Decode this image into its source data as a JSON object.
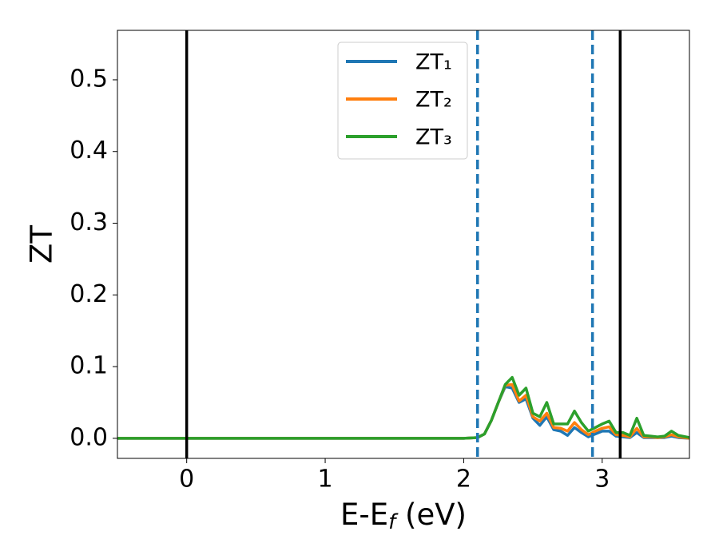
{
  "chart_data": {
    "type": "line",
    "x_label_parts": [
      "E-E",
      "f",
      " (eV)"
    ],
    "y_label": "ZT",
    "x": [
      -0.5,
      2.0,
      2.1,
      2.15,
      2.2,
      2.25,
      2.3,
      2.35,
      2.4,
      2.45,
      2.5,
      2.55,
      2.6,
      2.65,
      2.7,
      2.75,
      2.8,
      2.85,
      2.9,
      2.95,
      3.0,
      3.05,
      3.1,
      3.15,
      3.2,
      3.25,
      3.3,
      3.35,
      3.4,
      3.45,
      3.5,
      3.55,
      3.63
    ],
    "series": [
      {
        "name": "ZT₁",
        "color": "#1f77b4",
        "values": [
          0,
          0,
          0.001,
          0.006,
          0.025,
          0.05,
          0.072,
          0.07,
          0.05,
          0.055,
          0.028,
          0.018,
          0.03,
          0.012,
          0.01,
          0.004,
          0.015,
          0.008,
          0.002,
          0.006,
          0.01,
          0.01,
          0.003,
          0.002,
          0.001,
          0.008,
          0.001,
          0.001,
          0.001,
          0.001,
          0.003,
          0.001,
          0
        ]
      },
      {
        "name": "ZT₂",
        "color": "#ff7f0e",
        "values": [
          0,
          0,
          0.001,
          0.006,
          0.025,
          0.05,
          0.074,
          0.075,
          0.052,
          0.06,
          0.03,
          0.024,
          0.035,
          0.015,
          0.014,
          0.01,
          0.022,
          0.012,
          0.005,
          0.01,
          0.014,
          0.016,
          0.005,
          0.004,
          0.002,
          0.014,
          0.002,
          0.002,
          0.001,
          0.002,
          0.005,
          0.002,
          0
        ]
      },
      {
        "name": "ZT₃",
        "color": "#2ca02c",
        "values": [
          0,
          0,
          0.001,
          0.006,
          0.025,
          0.05,
          0.075,
          0.085,
          0.06,
          0.07,
          0.035,
          0.03,
          0.05,
          0.02,
          0.02,
          0.02,
          0.038,
          0.022,
          0.01,
          0.015,
          0.02,
          0.024,
          0.008,
          0.008,
          0.004,
          0.028,
          0.004,
          0.003,
          0.002,
          0.003,
          0.01,
          0.004,
          0.001
        ]
      }
    ],
    "vlines": [
      {
        "x": 0,
        "color": "#000000",
        "style": "solid"
      },
      {
        "x": 3.13,
        "color": "#000000",
        "style": "solid"
      },
      {
        "x": 2.1,
        "color": "#1f77b4",
        "style": "dashed"
      },
      {
        "x": 2.93,
        "color": "#1f77b4",
        "style": "dashed"
      }
    ],
    "xlim": [
      -0.5,
      3.63
    ],
    "ylim": [
      -0.028,
      0.569
    ],
    "xticks": [
      0,
      1,
      2,
      3
    ],
    "yticks": [
      {
        "value": 0,
        "label": "0.0"
      },
      {
        "value": 0.1,
        "label": "0.1"
      },
      {
        "value": 0.2,
        "label": "0.2"
      },
      {
        "value": 0.3,
        "label": "0.3"
      },
      {
        "value": 0.4,
        "label": "0.4"
      },
      {
        "value": 0.5,
        "label": "0.5"
      }
    ],
    "legend": "upper center"
  }
}
